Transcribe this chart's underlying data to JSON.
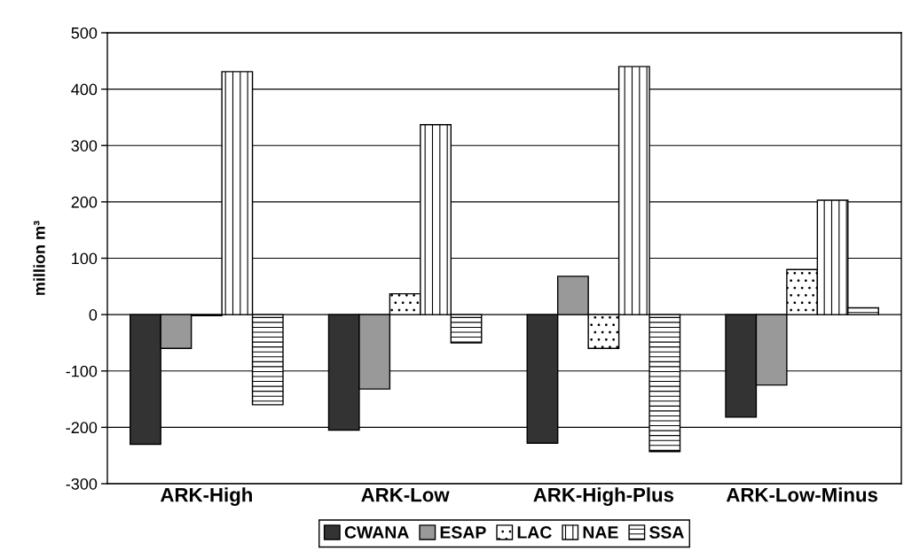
{
  "chart_data": {
    "type": "bar",
    "ylabel": "million m³",
    "categories": [
      "ARK-High",
      "ARK-Low",
      "ARK-High-Plus",
      "ARK-Low-Minus"
    ],
    "series": [
      {
        "name": "CWANA",
        "color": "#333333",
        "values": [
          -230,
          -205,
          -228,
          -182
        ]
      },
      {
        "name": "ESAP",
        "color": "#999999",
        "values": [
          -60,
          -132,
          68,
          -125
        ]
      },
      {
        "name": "LAC",
        "color": "#000000",
        "values": [
          -2,
          37,
          -60,
          80
        ]
      },
      {
        "name": "NAE",
        "color": "#000000",
        "values": [
          431,
          337,
          440,
          203
        ]
      },
      {
        "name": "SSA",
        "color": "#000000",
        "values": [
          -160,
          -50,
          -243,
          12
        ]
      }
    ],
    "ylim": [
      -300,
      500
    ],
    "yticks": [
      -300,
      -200,
      -100,
      0,
      100,
      200,
      300,
      400,
      500
    ],
    "grid": "y",
    "legend": "bottom"
  }
}
